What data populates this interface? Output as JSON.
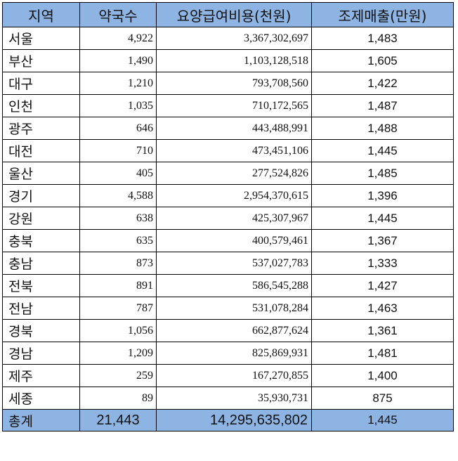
{
  "colors": {
    "header_bg": "#8db4e2",
    "border": "#000000",
    "body_bg": "#ffffff"
  },
  "headers": {
    "region": "지역",
    "pharmacies": "약국수",
    "cost": "요양급여비용(천원)",
    "sales": "조제매출(만원)"
  },
  "rows": [
    {
      "region": "서울",
      "pharmacies": "4,922",
      "cost": "3,367,302,697",
      "sales": "1,483"
    },
    {
      "region": "부산",
      "pharmacies": "1,490",
      "cost": "1,103,128,518",
      "sales": "1,605"
    },
    {
      "region": "대구",
      "pharmacies": "1,210",
      "cost": "793,708,560",
      "sales": "1,422"
    },
    {
      "region": "인천",
      "pharmacies": "1,035",
      "cost": "710,172,565",
      "sales": "1,487"
    },
    {
      "region": "광주",
      "pharmacies": "646",
      "cost": "443,488,991",
      "sales": "1,488"
    },
    {
      "region": "대전",
      "pharmacies": "710",
      "cost": "473,451,106",
      "sales": "1,445"
    },
    {
      "region": "울산",
      "pharmacies": "405",
      "cost": "277,524,826",
      "sales": "1,485"
    },
    {
      "region": "경기",
      "pharmacies": "4,588",
      "cost": "2,954,370,615",
      "sales": "1,396"
    },
    {
      "region": "강원",
      "pharmacies": "638",
      "cost": "425,307,967",
      "sales": "1,445"
    },
    {
      "region": "충북",
      "pharmacies": "635",
      "cost": "400,579,461",
      "sales": "1,367"
    },
    {
      "region": "충남",
      "pharmacies": "873",
      "cost": "537,027,783",
      "sales": "1,333"
    },
    {
      "region": "전북",
      "pharmacies": "891",
      "cost": "586,545,288",
      "sales": "1,427"
    },
    {
      "region": "전남",
      "pharmacies": "787",
      "cost": "531,078,284",
      "sales": "1,463"
    },
    {
      "region": "경북",
      "pharmacies": "1,056",
      "cost": "662,877,624",
      "sales": "1,361"
    },
    {
      "region": "경남",
      "pharmacies": "1,209",
      "cost": "825,869,931",
      "sales": "1,481"
    },
    {
      "region": "제주",
      "pharmacies": "259",
      "cost": "167,270,855",
      "sales": "1,400"
    },
    {
      "region": "세종",
      "pharmacies": "89",
      "cost": "35,930,731",
      "sales": "875"
    }
  ],
  "total": {
    "label": "총계",
    "pharmacies": "21,443",
    "cost": "14,295,635,802",
    "sales": "1,445"
  }
}
